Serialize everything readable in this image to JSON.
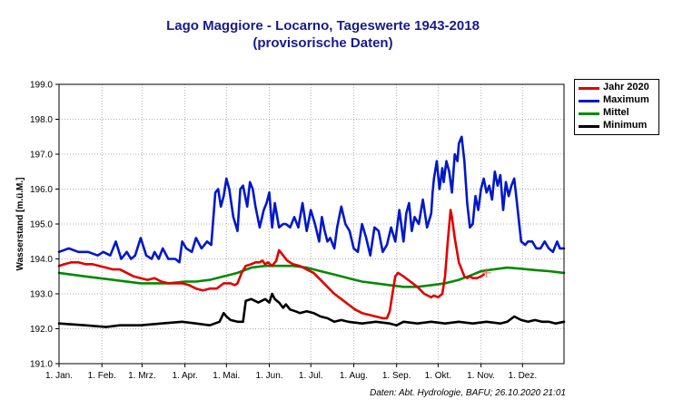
{
  "title_line1": "Lago Maggiore - Locarno, Tageswerte 1943-2018",
  "title_line2": "(provisorische Daten)",
  "footer": "Daten: Abt. Hydrologie, BAFU; 26.10.2020 21:01",
  "legend": [
    {
      "label": "Jahr 2020",
      "color": "#e00000"
    },
    {
      "label": "Maximum",
      "color": "#0018c8"
    },
    {
      "label": "Mittel",
      "color": "#008a00"
    },
    {
      "label": "Minimum",
      "color": "#000000"
    }
  ],
  "chart_data": {
    "type": "line",
    "ylabel": "Wasserstand [m.ü.M.]",
    "xlabel": "",
    "ylim": [
      191.0,
      199.0
    ],
    "xlim": [
      1,
      366
    ],
    "yticks": [
      "191.0",
      "192.0",
      "193.0",
      "194.0",
      "195.0",
      "196.0",
      "197.0",
      "198.0",
      "199.0"
    ],
    "xticks": [
      {
        "day": 1,
        "label": "1. Jan."
      },
      {
        "day": 32,
        "label": "1. Feb."
      },
      {
        "day": 61,
        "label": "1. Mrz."
      },
      {
        "day": 92,
        "label": "1. Apr."
      },
      {
        "day": 122,
        "label": "1. Mai."
      },
      {
        "day": 153,
        "label": "1. Jun."
      },
      {
        "day": 183,
        "label": "1. Jul."
      },
      {
        "day": 214,
        "label": "1. Aug."
      },
      {
        "day": 245,
        "label": "1. Sep."
      },
      {
        "day": 275,
        "label": "1. Okt."
      },
      {
        "day": 306,
        "label": "1. Nov."
      },
      {
        "day": 336,
        "label": "1. Dez."
      }
    ],
    "grid": true,
    "legend_position": "right",
    "series": [
      {
        "name": "Maximum",
        "color": "#0018c8",
        "x": [
          1,
          8,
          15,
          22,
          29,
          33,
          38,
          42,
          46,
          50,
          53,
          56,
          60,
          64,
          68,
          70,
          73,
          76,
          80,
          85,
          88,
          90,
          93,
          97,
          100,
          104,
          108,
          111,
          114,
          116,
          118,
          120,
          122,
          124,
          127,
          130,
          132,
          134,
          137,
          139,
          141,
          143,
          146,
          149,
          151,
          153,
          155,
          157,
          160,
          163,
          165,
          168,
          171,
          174,
          177,
          180,
          183,
          186,
          189,
          191,
          193,
          195,
          197,
          200,
          202,
          205,
          208,
          211,
          214,
          217,
          220,
          223,
          226,
          229,
          232,
          235,
          238,
          241,
          244,
          247,
          250,
          252,
          254,
          256,
          258,
          261,
          264,
          267,
          270,
          271,
          272,
          274,
          276,
          278,
          279,
          281,
          283,
          285,
          287,
          289,
          290,
          292,
          294,
          296,
          298,
          300,
          302,
          304,
          306,
          308,
          310,
          312,
          314,
          316,
          318,
          320,
          322,
          324,
          326,
          328,
          330,
          332,
          335,
          338,
          340,
          343,
          346,
          349,
          352,
          355,
          358,
          361,
          363,
          366
        ],
        "values": [
          194.2,
          194.3,
          194.2,
          194.2,
          194.1,
          194.2,
          194.1,
          194.5,
          194.0,
          194.2,
          194.0,
          194.1,
          194.6,
          194.1,
          194.0,
          194.2,
          194.0,
          194.3,
          194.0,
          194.0,
          193.9,
          194.5,
          194.3,
          194.2,
          194.6,
          194.3,
          194.5,
          194.4,
          195.9,
          196.0,
          195.5,
          195.8,
          196.3,
          196.0,
          195.2,
          194.8,
          196.0,
          196.1,
          195.5,
          196.2,
          196.0,
          195.5,
          194.9,
          195.4,
          195.6,
          195.9,
          194.9,
          195.6,
          194.9,
          195.0,
          195.0,
          194.9,
          195.2,
          194.9,
          195.6,
          194.8,
          195.4,
          195.0,
          194.5,
          195.2,
          194.8,
          194.5,
          194.6,
          194.3,
          194.9,
          195.5,
          195.0,
          194.8,
          194.3,
          194.2,
          195.0,
          194.6,
          194.1,
          194.9,
          194.8,
          194.2,
          194.4,
          194.9,
          194.5,
          195.4,
          194.5,
          195.3,
          195.6,
          194.8,
          195.2,
          195.0,
          195.7,
          194.9,
          195.3,
          195.9,
          196.3,
          196.8,
          196.0,
          196.6,
          196.2,
          196.8,
          196.5,
          195.9,
          197.0,
          196.8,
          197.3,
          197.5,
          196.8,
          195.6,
          194.9,
          195.0,
          195.8,
          195.4,
          196.0,
          196.3,
          195.9,
          196.1,
          195.7,
          196.5,
          196.1,
          196.4,
          195.4,
          196.2,
          195.8,
          196.1,
          196.3,
          195.6,
          194.5,
          194.4,
          194.5,
          194.5,
          194.3,
          194.3,
          194.5,
          194.3,
          194.2,
          194.5,
          194.3,
          194.3
        ]
      },
      {
        "name": "Mittel",
        "color": "#008a00",
        "x": [
          1,
          20,
          40,
          60,
          80,
          92,
          100,
          110,
          120,
          130,
          140,
          150,
          160,
          170,
          180,
          190,
          200,
          210,
          220,
          230,
          240,
          250,
          260,
          270,
          280,
          290,
          300,
          306,
          315,
          325,
          335,
          345,
          355,
          366
        ],
        "values": [
          193.6,
          193.5,
          193.4,
          193.3,
          193.3,
          193.35,
          193.35,
          193.4,
          193.5,
          193.6,
          193.75,
          193.8,
          193.8,
          193.8,
          193.75,
          193.65,
          193.55,
          193.45,
          193.35,
          193.3,
          193.25,
          193.2,
          193.2,
          193.25,
          193.3,
          193.4,
          193.55,
          193.65,
          193.7,
          193.75,
          193.72,
          193.68,
          193.65,
          193.6
        ]
      },
      {
        "name": "Minimum",
        "color": "#000000",
        "x": [
          1,
          20,
          35,
          45,
          60,
          75,
          90,
          100,
          110,
          117,
          120,
          122,
          125,
          130,
          134,
          136,
          140,
          145,
          150,
          153,
          155,
          157,
          160,
          163,
          165,
          168,
          172,
          175,
          180,
          185,
          190,
          195,
          200,
          205,
          210,
          220,
          230,
          240,
          245,
          250,
          260,
          270,
          280,
          290,
          300,
          310,
          320,
          325,
          330,
          335,
          340,
          345,
          350,
          355,
          360,
          366
        ],
        "values": [
          192.15,
          192.1,
          192.05,
          192.1,
          192.1,
          192.15,
          192.2,
          192.15,
          192.1,
          192.2,
          192.45,
          192.35,
          192.25,
          192.2,
          192.2,
          192.8,
          192.85,
          192.75,
          192.85,
          192.75,
          193.0,
          192.85,
          192.75,
          192.6,
          192.7,
          192.55,
          192.5,
          192.45,
          192.5,
          192.45,
          192.35,
          192.3,
          192.2,
          192.25,
          192.2,
          192.15,
          192.2,
          192.15,
          192.1,
          192.2,
          192.15,
          192.2,
          192.15,
          192.2,
          192.15,
          192.2,
          192.15,
          192.2,
          192.35,
          192.25,
          192.2,
          192.25,
          192.2,
          192.2,
          192.15,
          192.2
        ]
      },
      {
        "name": "Jahr 2020",
        "color": "#e00000",
        "x": [
          1,
          5,
          10,
          15,
          20,
          25,
          30,
          35,
          40,
          45,
          50,
          55,
          60,
          65,
          70,
          75,
          80,
          85,
          90,
          95,
          100,
          105,
          110,
          115,
          120,
          125,
          128,
          130,
          133,
          136,
          140,
          143,
          146,
          148,
          150,
          152,
          155,
          158,
          160,
          163,
          166,
          170,
          175,
          180,
          185,
          190,
          195,
          200,
          205,
          210,
          215,
          220,
          225,
          230,
          235,
          238,
          240,
          242,
          244,
          246,
          248,
          250,
          255,
          260,
          265,
          270,
          272,
          275,
          278,
          280,
          282,
          284,
          285,
          287,
          290,
          292,
          294,
          296,
          298,
          300,
          303,
          306,
          308
        ],
        "values": [
          193.8,
          193.85,
          193.9,
          193.9,
          193.85,
          193.85,
          193.8,
          193.75,
          193.7,
          193.7,
          193.6,
          193.5,
          193.45,
          193.4,
          193.45,
          193.35,
          193.3,
          193.3,
          193.3,
          193.25,
          193.15,
          193.1,
          193.15,
          193.15,
          193.3,
          193.3,
          193.25,
          193.3,
          193.6,
          193.8,
          193.85,
          193.9,
          193.9,
          193.95,
          193.85,
          193.9,
          193.8,
          193.95,
          194.25,
          194.1,
          193.95,
          193.85,
          193.8,
          193.7,
          193.6,
          193.4,
          193.2,
          193.0,
          192.85,
          192.7,
          192.55,
          192.45,
          192.4,
          192.35,
          192.3,
          192.3,
          192.5,
          193.0,
          193.5,
          193.6,
          193.55,
          193.5,
          193.35,
          193.2,
          193.0,
          192.9,
          192.95,
          192.9,
          193.0,
          193.5,
          194.5,
          195.4,
          195.2,
          194.6,
          193.9,
          193.7,
          193.5,
          193.45,
          193.5,
          193.45,
          193.45,
          193.5,
          193.55
        ]
      }
    ],
    "marker": {
      "x": 310,
      "y": 193.6
    }
  }
}
